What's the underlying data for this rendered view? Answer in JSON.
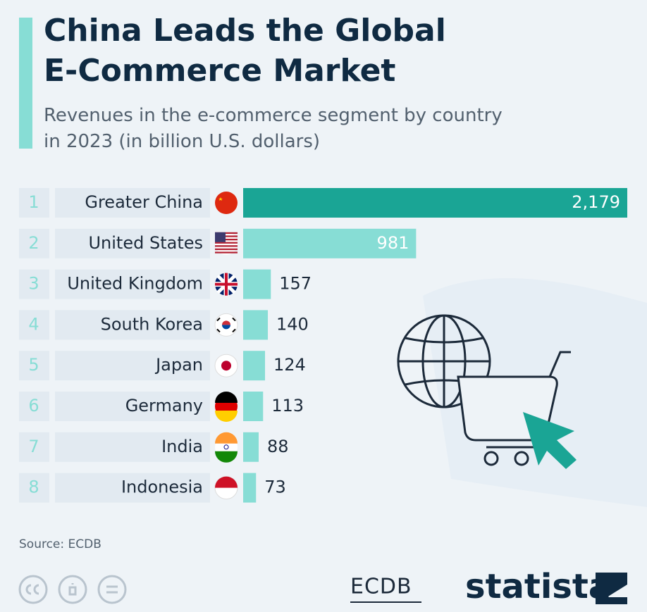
{
  "chart_data": {
    "type": "bar",
    "orientation": "horizontal",
    "title": "China Leads the Global E-Commerce Market",
    "subtitle": "Revenues in the e-commerce segment by country in 2023 (in billion U.S. dollars)",
    "ranks": [
      1,
      2,
      3,
      4,
      5,
      6,
      7,
      8
    ],
    "categories": [
      "Greater China",
      "United States",
      "United Kingdom",
      "South Korea",
      "Japan",
      "Germany",
      "India",
      "Indonesia"
    ],
    "values": [
      2179,
      981,
      157,
      140,
      124,
      113,
      88,
      73
    ],
    "value_labels": [
      "2,179",
      "981",
      "157",
      "140",
      "124",
      "113",
      "88",
      "73"
    ],
    "colors": [
      "#1aa595",
      "#87ddd5",
      "#87ddd5",
      "#87ddd5",
      "#87ddd5",
      "#87ddd5",
      "#87ddd5",
      "#87ddd5"
    ],
    "source": "Source: ECDB",
    "brands": [
      "ECDB",
      "statista"
    ]
  }
}
